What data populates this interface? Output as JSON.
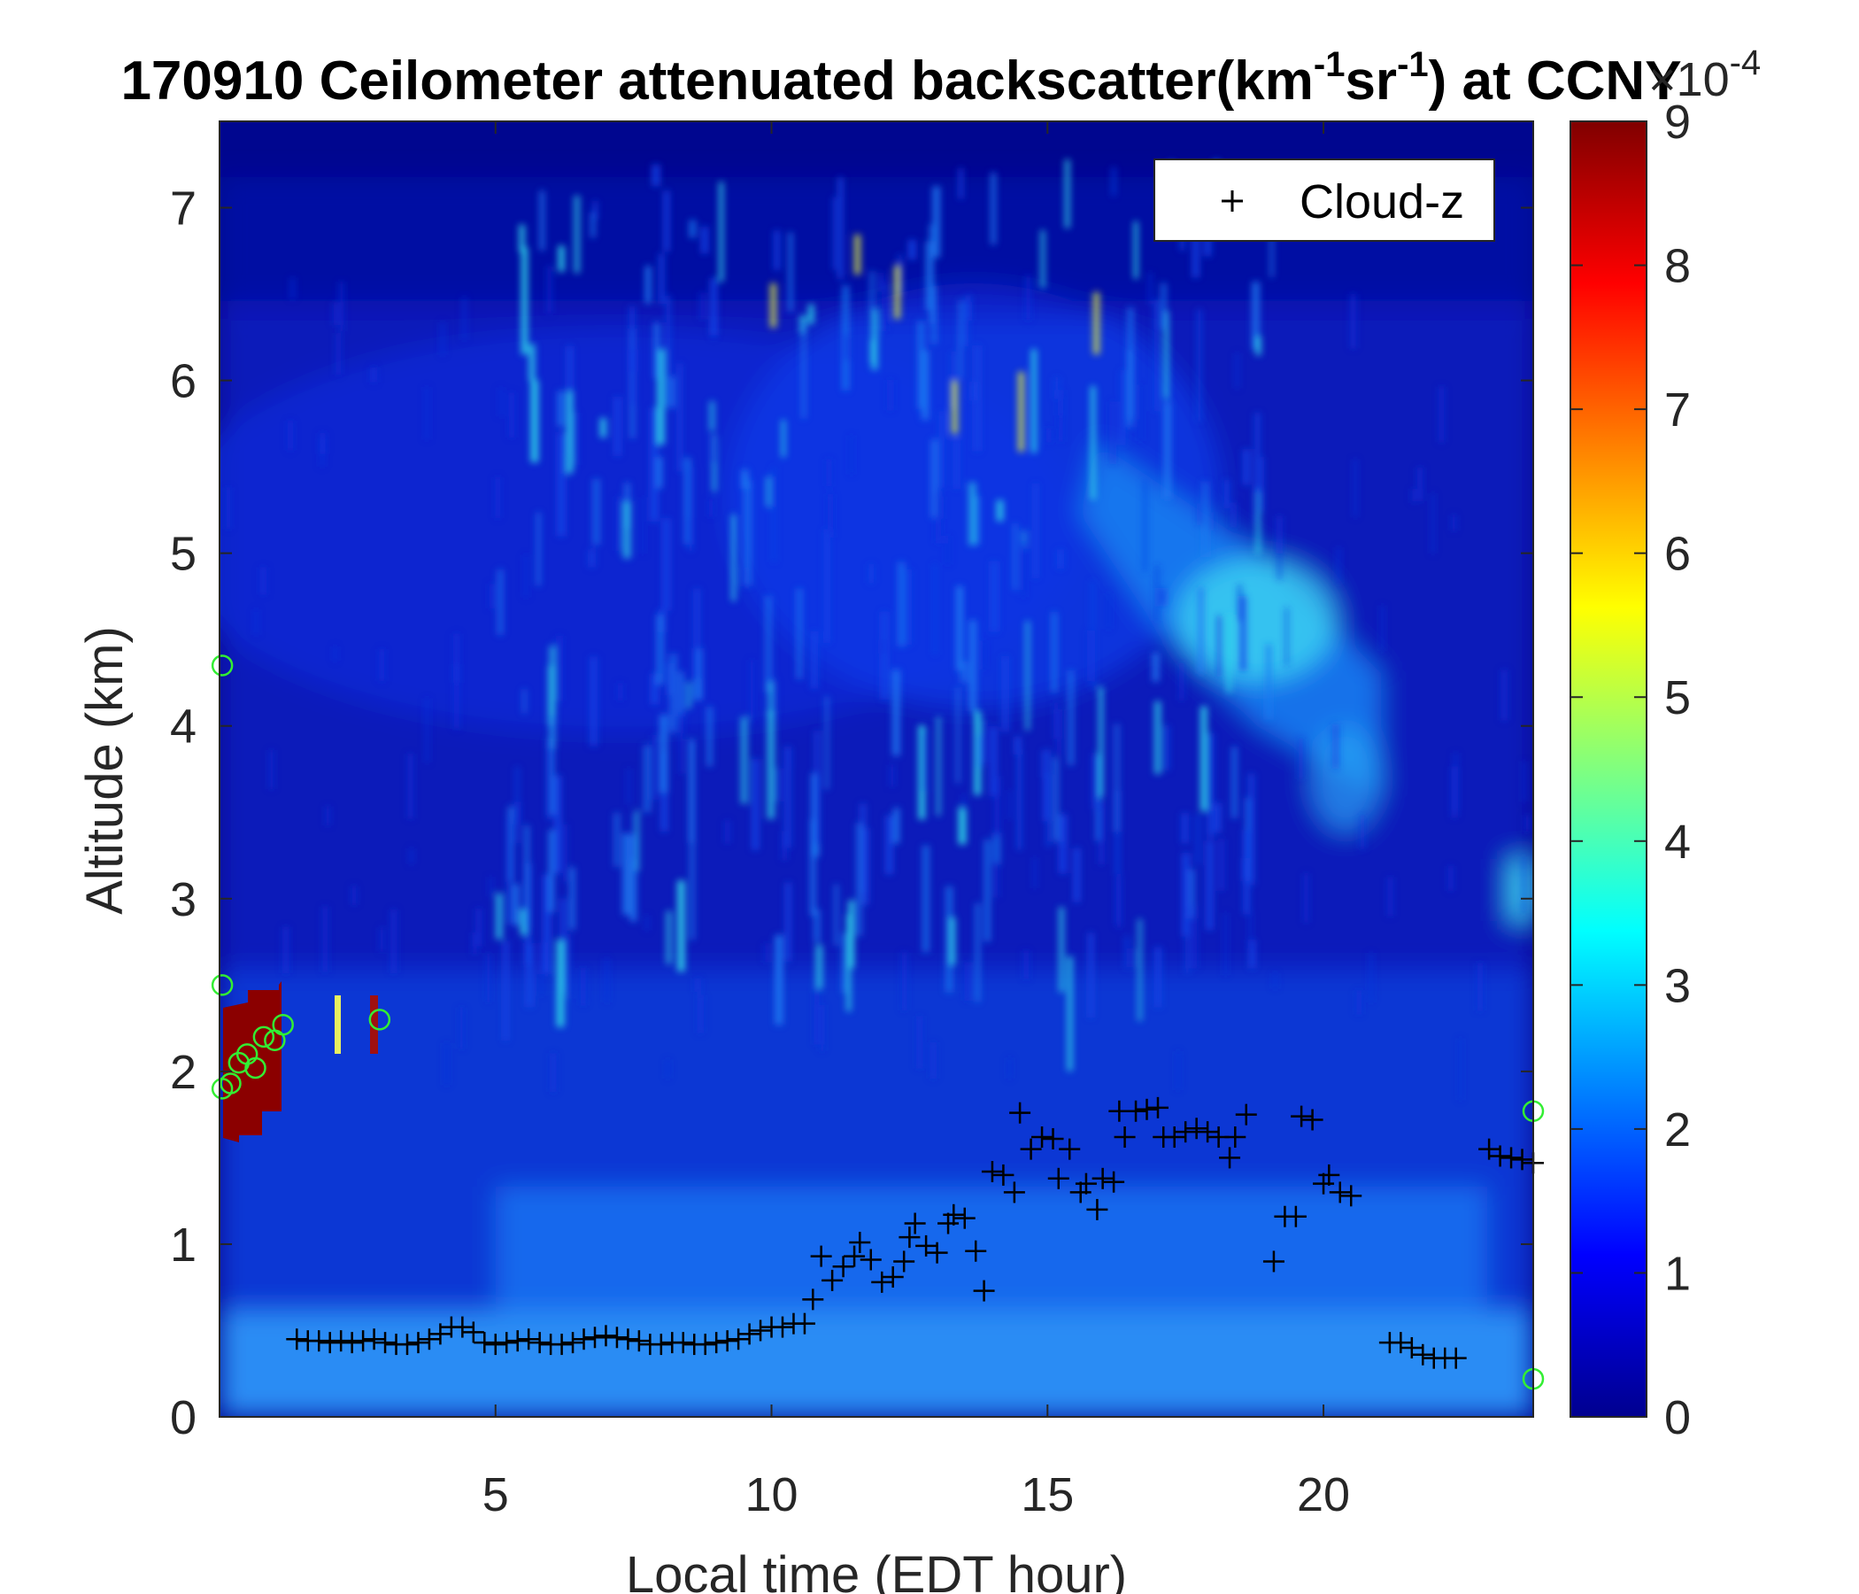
{
  "chart_data": {
    "type": "heatmap",
    "title_prefix": "170910 Ceilometer attenuated backscatter(km",
    "title_sup1": "-1",
    "title_mid": "sr",
    "title_sup2": "-1",
    "title_suffix": ") at CCNY",
    "xlabel": "Local time (EDT hour)",
    "ylabel": "Altitude (km)",
    "xlim": [
      0,
      23.8
    ],
    "ylim": [
      0,
      7.5
    ],
    "x_ticks": [
      5,
      10,
      15,
      20
    ],
    "y_ticks": [
      0,
      1,
      2,
      3,
      4,
      5,
      6,
      7
    ],
    "colorbar": {
      "colormap": "jet",
      "range": [
        0,
        9
      ],
      "ticks": [
        0,
        1,
        2,
        3,
        4,
        5,
        6,
        7,
        8,
        9
      ],
      "exponent_base": "×10",
      "exponent_power": "-4"
    },
    "legend": {
      "entries": [
        "Cloud-z"
      ],
      "placement": "top-right"
    },
    "series": [
      {
        "name": "Cloud-z",
        "marker": "+",
        "color": "#000000",
        "points": [
          [
            1.4,
            0.45
          ],
          [
            1.6,
            0.44
          ],
          [
            1.8,
            0.44
          ],
          [
            2.0,
            0.43
          ],
          [
            2.2,
            0.44
          ],
          [
            2.4,
            0.43
          ],
          [
            2.6,
            0.44
          ],
          [
            2.8,
            0.45
          ],
          [
            3.0,
            0.43
          ],
          [
            3.2,
            0.42
          ],
          [
            3.4,
            0.42
          ],
          [
            3.6,
            0.43
          ],
          [
            3.8,
            0.45
          ],
          [
            4.0,
            0.48
          ],
          [
            4.2,
            0.52
          ],
          [
            4.4,
            0.52
          ],
          [
            4.6,
            0.49
          ],
          [
            4.8,
            0.43
          ],
          [
            5.0,
            0.42
          ],
          [
            5.2,
            0.43
          ],
          [
            5.4,
            0.44
          ],
          [
            5.6,
            0.45
          ],
          [
            5.8,
            0.43
          ],
          [
            6.0,
            0.42
          ],
          [
            6.2,
            0.42
          ],
          [
            6.4,
            0.43
          ],
          [
            6.6,
            0.45
          ],
          [
            6.8,
            0.46
          ],
          [
            7.0,
            0.47
          ],
          [
            7.2,
            0.46
          ],
          [
            7.4,
            0.45
          ],
          [
            7.6,
            0.44
          ],
          [
            7.8,
            0.42
          ],
          [
            8.0,
            0.42
          ],
          [
            8.2,
            0.43
          ],
          [
            8.4,
            0.43
          ],
          [
            8.6,
            0.42
          ],
          [
            8.8,
            0.42
          ],
          [
            9.0,
            0.43
          ],
          [
            9.2,
            0.44
          ],
          [
            9.4,
            0.45
          ],
          [
            9.6,
            0.48
          ],
          [
            9.8,
            0.5
          ],
          [
            10.0,
            0.52
          ],
          [
            10.2,
            0.52
          ],
          [
            10.4,
            0.54
          ],
          [
            10.6,
            0.54
          ],
          [
            10.75,
            0.68
          ],
          [
            10.9,
            0.93
          ],
          [
            11.1,
            0.79
          ],
          [
            11.3,
            0.87
          ],
          [
            11.5,
            0.93
          ],
          [
            11.6,
            1.01
          ],
          [
            11.8,
            0.91
          ],
          [
            12.0,
            0.78
          ],
          [
            12.2,
            0.81
          ],
          [
            12.4,
            0.9
          ],
          [
            12.5,
            1.04
          ],
          [
            12.6,
            1.12
          ],
          [
            12.8,
            0.99
          ],
          [
            13.0,
            0.95
          ],
          [
            13.2,
            1.12
          ],
          [
            13.3,
            1.17
          ],
          [
            13.5,
            1.15
          ],
          [
            13.7,
            0.96
          ],
          [
            13.85,
            0.73
          ],
          [
            14.0,
            1.42
          ],
          [
            14.2,
            1.4
          ],
          [
            14.4,
            1.3
          ],
          [
            14.5,
            1.76
          ],
          [
            14.7,
            1.55
          ],
          [
            14.9,
            1.62
          ],
          [
            15.1,
            1.61
          ],
          [
            15.2,
            1.38
          ],
          [
            15.4,
            1.55
          ],
          [
            15.6,
            1.3
          ],
          [
            15.7,
            1.35
          ],
          [
            15.9,
            1.2
          ],
          [
            16.0,
            1.38
          ],
          [
            16.2,
            1.36
          ],
          [
            16.3,
            1.77
          ],
          [
            16.4,
            1.62
          ],
          [
            16.6,
            1.77
          ],
          [
            16.8,
            1.78
          ],
          [
            17.0,
            1.79
          ],
          [
            17.1,
            1.62
          ],
          [
            17.3,
            1.62
          ],
          [
            17.5,
            1.65
          ],
          [
            17.7,
            1.67
          ],
          [
            17.9,
            1.65
          ],
          [
            18.1,
            1.62
          ],
          [
            18.3,
            1.5
          ],
          [
            18.4,
            1.62
          ],
          [
            18.6,
            1.75
          ],
          [
            19.1,
            0.9
          ],
          [
            19.3,
            1.16
          ],
          [
            19.5,
            1.16
          ],
          [
            19.6,
            1.74
          ],
          [
            19.8,
            1.72
          ],
          [
            20.0,
            1.35
          ],
          [
            20.1,
            1.4
          ],
          [
            20.3,
            1.3
          ],
          [
            20.5,
            1.28
          ],
          [
            21.2,
            0.43
          ],
          [
            21.4,
            0.43
          ],
          [
            21.6,
            0.4
          ],
          [
            21.8,
            0.36
          ],
          [
            22.0,
            0.34
          ],
          [
            22.2,
            0.34
          ],
          [
            22.4,
            0.34
          ],
          [
            23.0,
            1.55
          ],
          [
            23.2,
            1.51
          ],
          [
            23.4,
            1.5
          ],
          [
            23.6,
            1.49
          ],
          [
            23.8,
            1.47
          ]
        ]
      },
      {
        "name": "",
        "marker": "o",
        "color": "#33ee33",
        "points": [
          [
            0.05,
            4.35
          ],
          [
            0.05,
            2.5
          ],
          [
            0.05,
            1.9
          ],
          [
            0.2,
            1.93
          ],
          [
            0.35,
            2.05
          ],
          [
            0.5,
            2.1
          ],
          [
            0.65,
            2.02
          ],
          [
            0.8,
            2.2
          ],
          [
            1.0,
            2.18
          ],
          [
            1.15,
            2.27
          ],
          [
            2.9,
            2.3
          ],
          [
            23.8,
            1.77
          ],
          [
            23.8,
            0.22
          ]
        ]
      }
    ]
  }
}
